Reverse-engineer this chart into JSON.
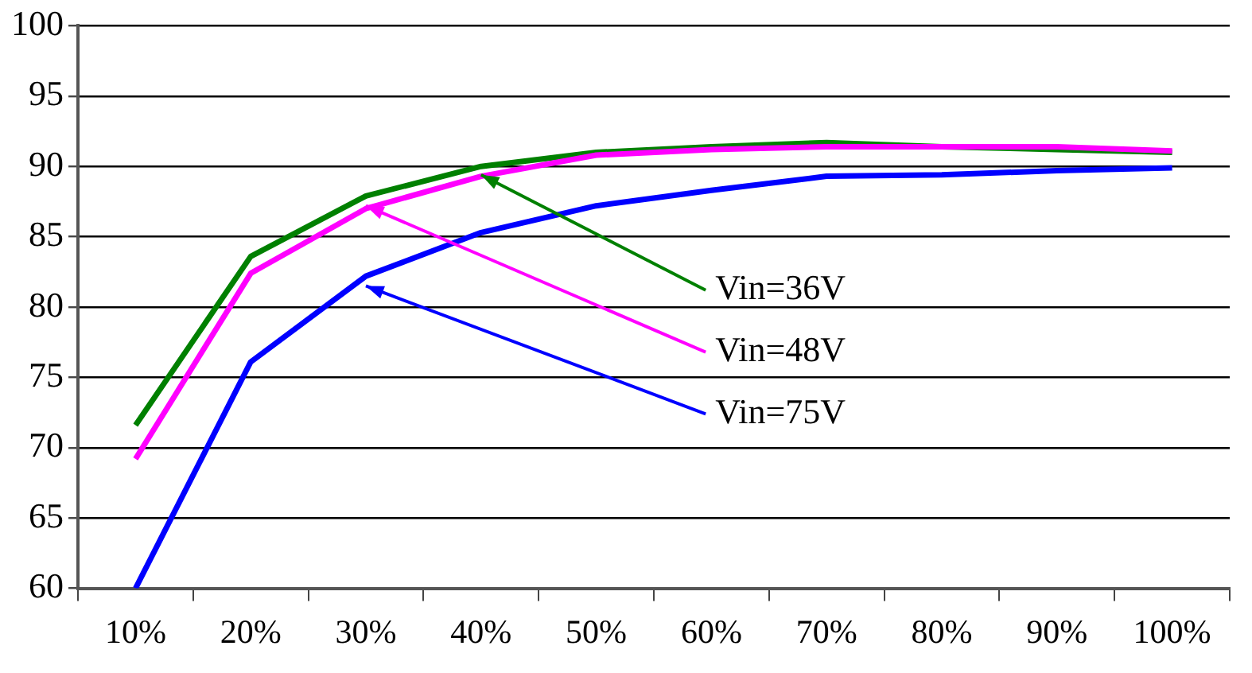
{
  "chart_data": {
    "type": "line",
    "categories": [
      "10%",
      "20%",
      "30%",
      "40%",
      "50%",
      "60%",
      "70%",
      "80%",
      "90%",
      "100%"
    ],
    "series": [
      {
        "color": "#008000",
        "values": [
          71.6,
          83.6,
          87.9,
          90.0,
          91.0,
          91.4,
          91.7,
          91.4,
          91.2,
          91.0
        ]
      },
      {
        "color": "#ff00ff",
        "values": [
          69.2,
          82.4,
          87.0,
          89.3,
          90.8,
          91.2,
          91.4,
          91.4,
          91.4,
          91.1
        ]
      },
      {
        "color": "#0000ff",
        "values": [
          60,
          76.1,
          82.2,
          85.3,
          87.2,
          88.3,
          89.3,
          89.4,
          89.7,
          89.9
        ]
      }
    ],
    "ylim": [
      60,
      100
    ],
    "yticks": [
      60,
      65,
      70,
      75,
      80,
      85,
      90,
      95,
      100
    ],
    "grid": "y",
    "legend": false,
    "marker": "none",
    "line_style": "solid",
    "annotations": [
      {
        "text": "Vin=36V",
        "x": "40%",
        "y": 89.4
      },
      {
        "text": "Vin=48V",
        "x": "30%",
        "y": 87.2
      },
      {
        "text": "Vin=75V",
        "x": "30%",
        "y": 81.5
      }
    ]
  }
}
